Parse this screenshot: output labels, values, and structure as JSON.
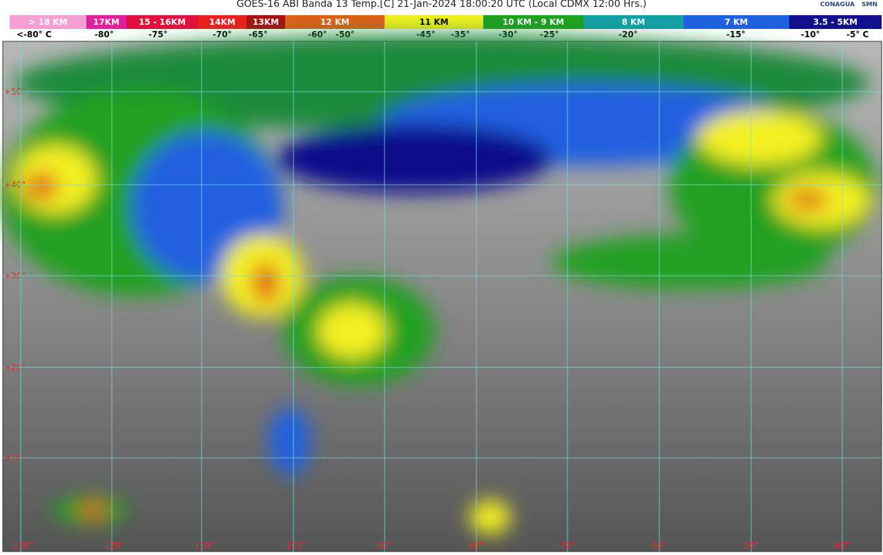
{
  "header": {
    "title": "GOES-16 ABI Banda 13 Temp.[C] 21-Jan-2024 18:00:20 UTC (Local CDMX  12:00 Hrs.)",
    "logos": [
      "CONAGUA",
      "SMN"
    ]
  },
  "legend": {
    "segments": [
      {
        "label": "> 18 KM",
        "color": "#f4a0d4"
      },
      {
        "label": "17KM",
        "color": "#e0209c"
      },
      {
        "label": "15 - 16KM",
        "color": "#e0103c"
      },
      {
        "label": "14KM",
        "color": "#ec2020"
      },
      {
        "label": "13KM",
        "color": "#a81010"
      },
      {
        "label": "12 KM",
        "color": "#e0601a"
      },
      {
        "label": "11 KM",
        "color": "#f4f020"
      },
      {
        "label": "10 KM - 9 KM",
        "color": "#22a022"
      },
      {
        "label": "8 KM",
        "color": "#14a0a8"
      },
      {
        "label": "7 KM",
        "color": "#2060e0"
      },
      {
        "label": "3.5 - 5KM",
        "color": "#10108c"
      }
    ],
    "temperatures": [
      "<-80° C",
      "-80°",
      "-75°",
      "-70°",
      "-65°",
      "-60°",
      "-50°",
      "-45°",
      "-35°",
      "-30°",
      "-25°",
      "-20°",
      "-15°",
      "-10°",
      "-5° C"
    ]
  },
  "map": {
    "lat_labels": [
      "+50°",
      "+40°",
      "+30°",
      "+20°",
      "+10°"
    ],
    "lon_labels": [
      "-130°",
      "-120°",
      "-110°",
      "-100°",
      "-90°",
      "-80°",
      "-70°",
      "-60°",
      "-50°",
      "-40°"
    ]
  }
}
